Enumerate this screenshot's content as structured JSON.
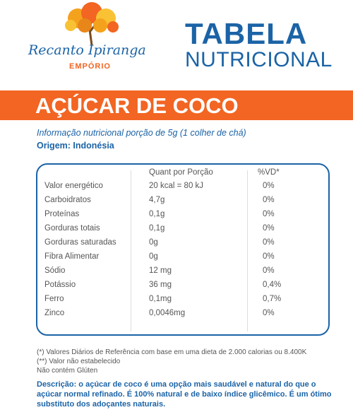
{
  "header": {
    "brand": "Recanto Ipiranga",
    "subbrand": "EMPÓRIO",
    "title_line1": "TABELA",
    "title_line2": "NUTRICIONAL"
  },
  "product": "AÇÚCAR DE COCO",
  "serving": "Informação nutricional porção de 5g (1 colher de chá)",
  "origin": "Origem: Indonésia",
  "table": {
    "headers": {
      "quantity": "Quant por Porção",
      "dv": "%VD*"
    },
    "rows": [
      [
        "Valor energético",
        "20 kcal = 80 kJ",
        "0%"
      ],
      [
        "Carboidratos",
        "4,7g",
        "0%"
      ],
      [
        "Proteínas",
        "0,1g",
        "0%"
      ],
      [
        "Gorduras totais",
        "0,1g",
        "0%"
      ],
      [
        "Gorduras saturadas",
        "0g",
        "0%"
      ],
      [
        "Fibra Alimentar",
        "0g",
        "0%"
      ],
      [
        "Sódio",
        "12 mg",
        "0%"
      ],
      [
        "Potássio",
        "36 mg",
        "0,4%"
      ],
      [
        "Ferro",
        "0,1mg",
        "0,7%"
      ],
      [
        "Zinco",
        "0,0046mg",
        "0%"
      ]
    ]
  },
  "footnotes": [
    "(*) Valores Diários de Referência com base em uma dieta de 2.000 calorias ou 8.400K",
    "(**) Valor não estabelecido",
    "Não contém Glúten"
  ],
  "description": "Descrição: o açúcar de coco é uma opção mais saudável e natural do que o açúcar normal refinado. É 100% natural e de baixo índice glicêmico. É um ótimo substituto dos adoçantes naturais."
}
